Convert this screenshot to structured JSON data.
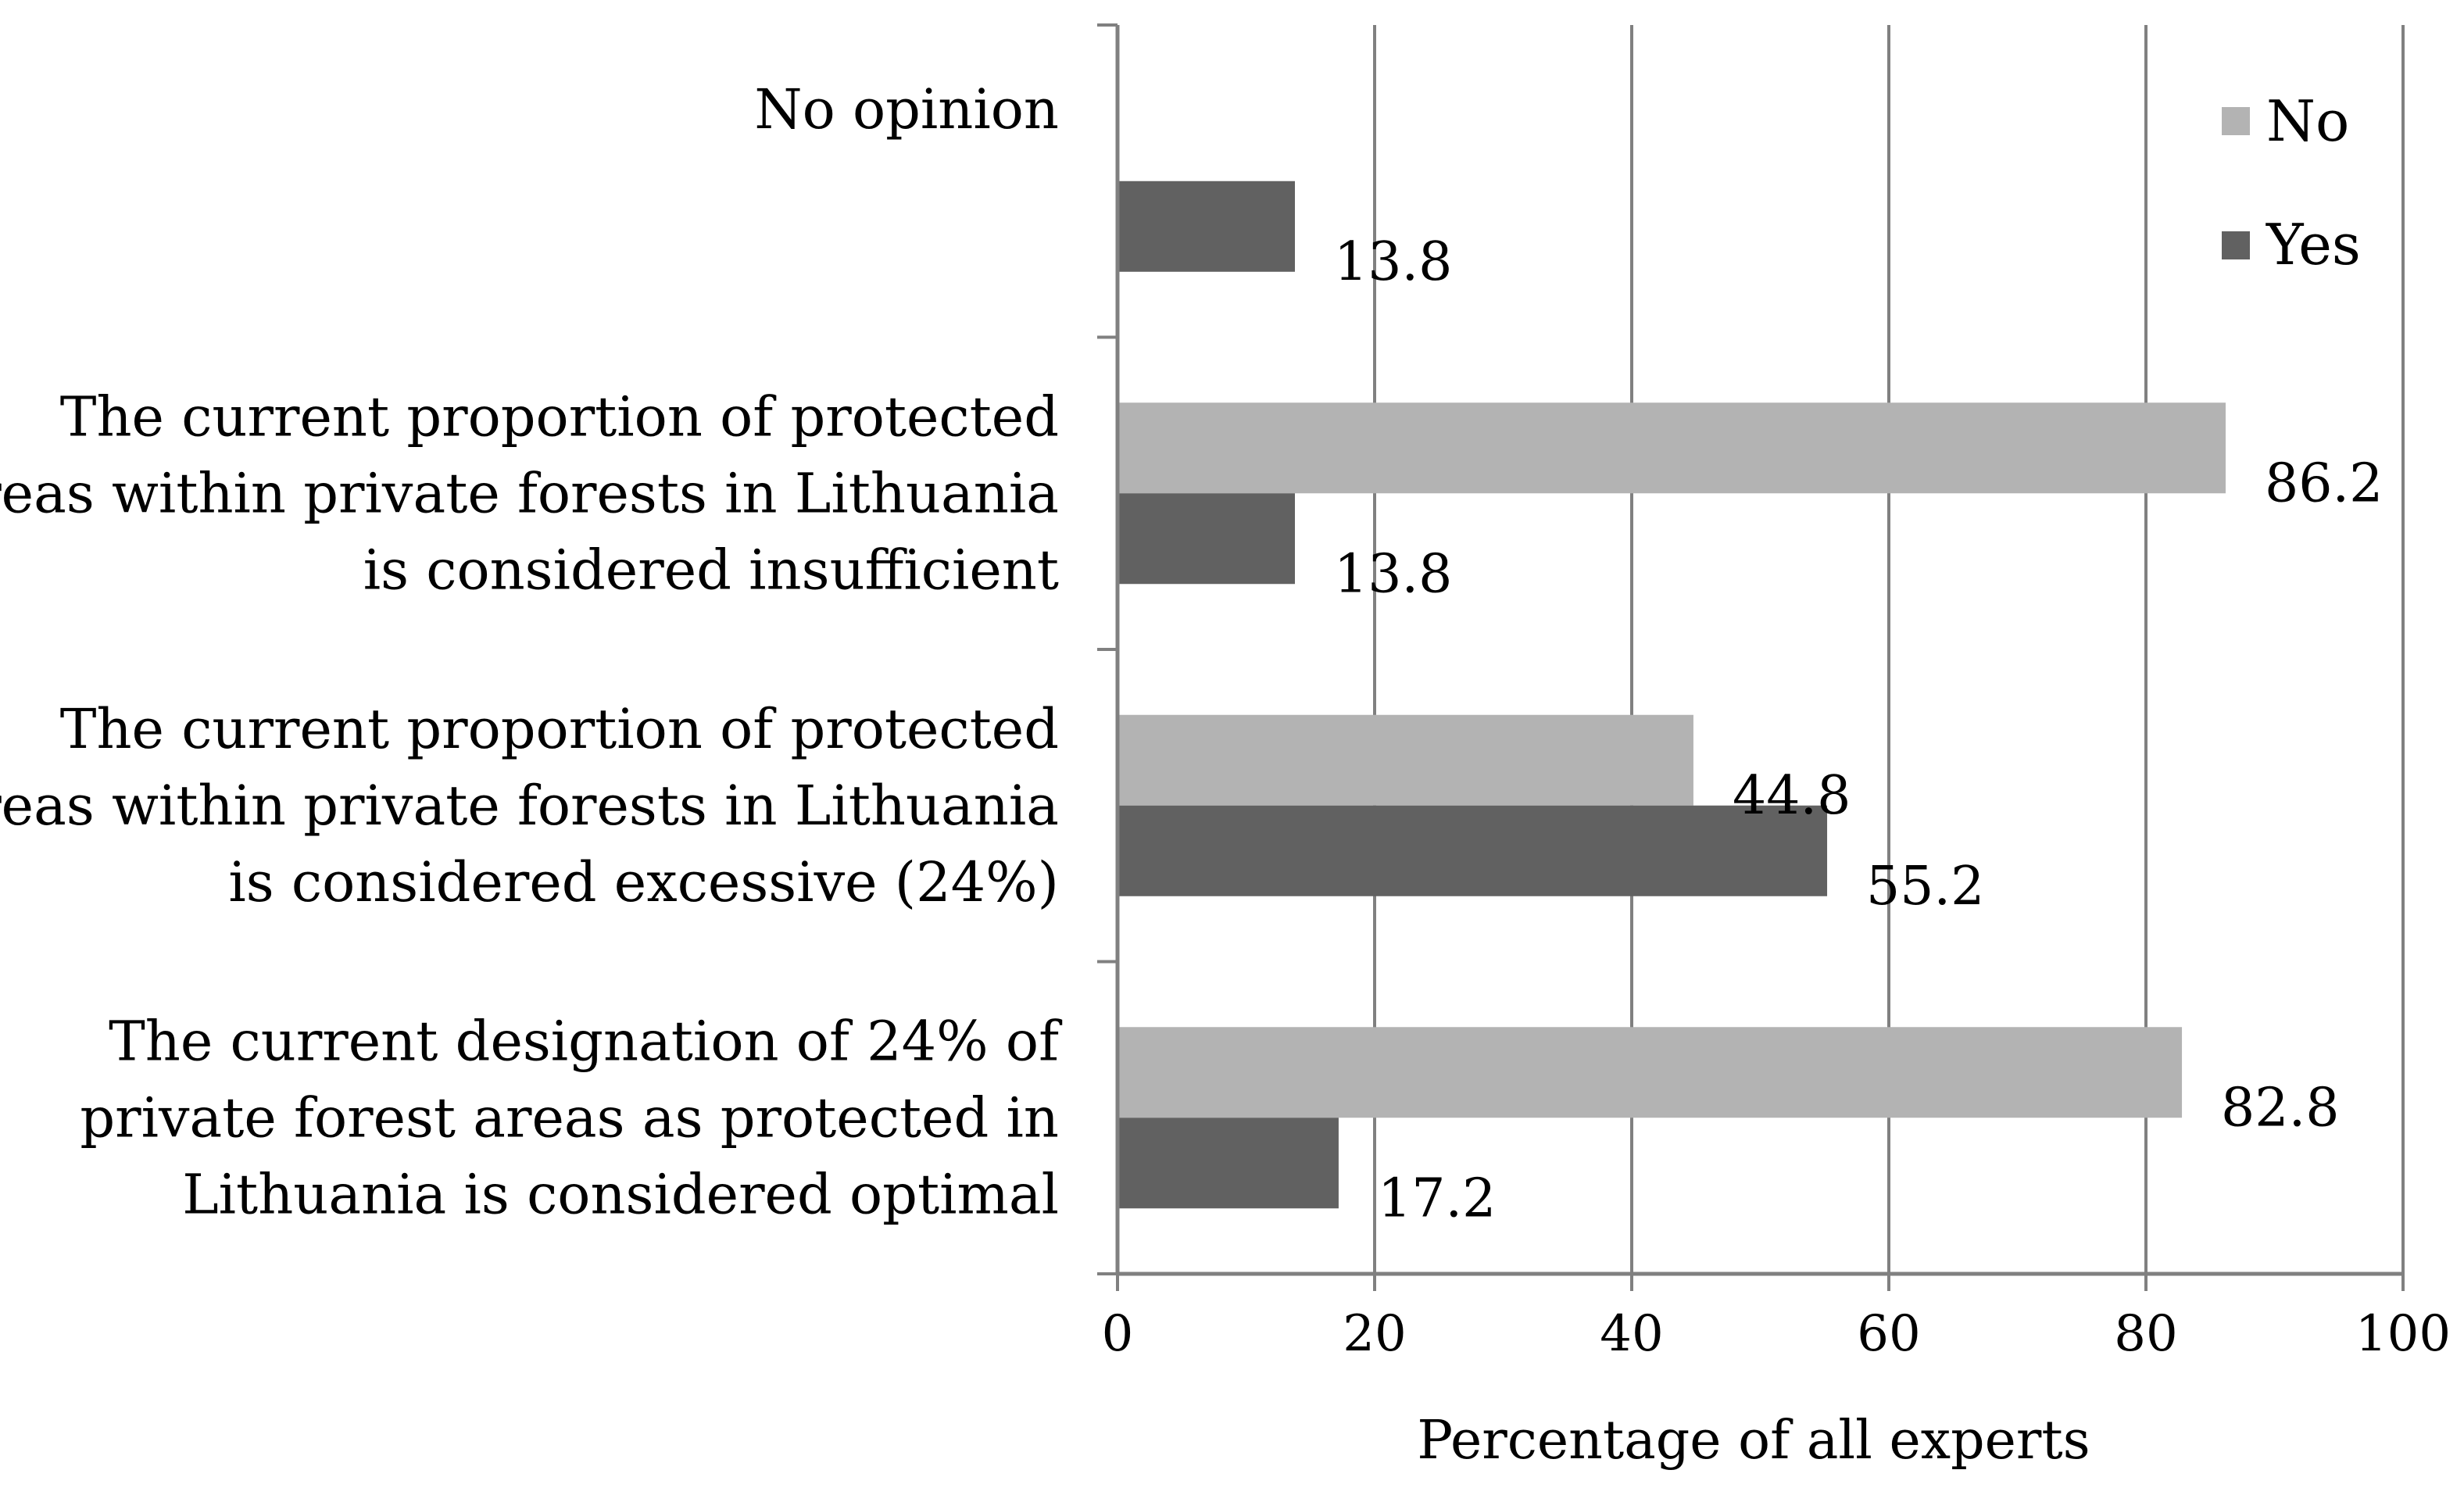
{
  "chart_data": {
    "type": "bar",
    "orientation": "horizontal",
    "title": "",
    "xlabel": "Percentage of all experts",
    "ylabel": "",
    "xlim": [
      0,
      100
    ],
    "xticks": [
      0,
      20,
      40,
      60,
      80,
      100
    ],
    "grid": true,
    "legend_position": "top-right",
    "categories": [
      {
        "id": "optimal",
        "lines": [
          "The current designation of 24% of",
          "private forest areas as protected in",
          "Lithuania is considered optimal"
        ]
      },
      {
        "id": "excessive",
        "lines": [
          "The current proportion of protected",
          "areas within private forests in Lithuania",
          "is considered excessive (24%)"
        ]
      },
      {
        "id": "insufficient",
        "lines": [
          "The current proportion of protected",
          "areas within private forests in Lithuania",
          "is considered insufficient"
        ]
      },
      {
        "id": "no-opinion",
        "lines": [
          "No opinion"
        ]
      }
    ],
    "series": [
      {
        "name": "No",
        "color": "#b3b3b3",
        "values": [
          82.8,
          44.8,
          86.2,
          null
        ],
        "labels": [
          "82.8",
          "44.8",
          "86.2",
          null
        ]
      },
      {
        "name": "Yes",
        "color": "#616161",
        "values": [
          17.2,
          55.2,
          13.8,
          13.8
        ],
        "labels": [
          "17.2",
          "55.2",
          "13.8",
          "13.8"
        ]
      }
    ]
  },
  "colors": {
    "axis": "#808080",
    "grid": "#808080"
  }
}
